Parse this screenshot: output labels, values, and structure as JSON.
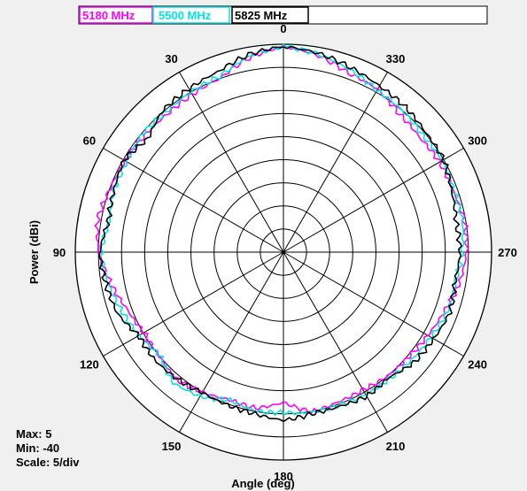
{
  "chart_data": {
    "type": "polar-line",
    "xlabel": "Angle (deg)",
    "ylabel": "Power (dBi)",
    "angle_tick_labels": [
      "0",
      "30",
      "60",
      "90",
      "120",
      "150",
      "180",
      "210",
      "240",
      "270",
      "300",
      "330"
    ],
    "radial_range": [
      -40,
      5
    ],
    "radial_scale_per_div": 5,
    "angular_direction": "counter-clockwise, 0 at top",
    "grid": true,
    "legend_position": "top",
    "series": [
      {
        "name": "5180 MHz",
        "color": "#ff00ff",
        "angles": [
          0,
          10,
          20,
          30,
          40,
          50,
          60,
          70,
          80,
          90,
          100,
          110,
          120,
          130,
          140,
          150,
          160,
          170,
          180,
          190,
          200,
          210,
          220,
          230,
          240,
          250,
          260,
          270,
          280,
          290,
          300,
          310,
          320,
          330,
          340,
          350
        ],
        "values": [
          4.5,
          2.7,
          0.0,
          -0.6,
          -1.0,
          -0.8,
          -0.5,
          -0.1,
          0.8,
          0.0,
          -2.0,
          -4.0,
          -5.2,
          -5.0,
          -4.0,
          -5.0,
          -6.0,
          -5.7,
          -7.5,
          -4.9,
          -5.5,
          -5.6,
          -5.0,
          -4.7,
          -4.0,
          -2.9,
          -1.4,
          -0.4,
          -0.3,
          -1.0,
          -1.0,
          -1.5,
          -1.0,
          0.7,
          1.2,
          3.2
        ]
      },
      {
        "name": "5500 MHz",
        "color": "#00e5e5",
        "angles": [
          0,
          10,
          20,
          30,
          40,
          50,
          60,
          70,
          80,
          90,
          100,
          110,
          120,
          130,
          140,
          150,
          160,
          170,
          180,
          190,
          200,
          210,
          220,
          230,
          240,
          250,
          260,
          270,
          280,
          290,
          300,
          310,
          320,
          330,
          340,
          350
        ],
        "values": [
          4.5,
          3.0,
          0.4,
          0.0,
          -0.5,
          -0.2,
          -0.9,
          -1.0,
          -1.8,
          -0.5,
          -1.5,
          -2.8,
          -4.0,
          -5.2,
          -3.0,
          -4.0,
          -6.0,
          -5.1,
          -5.3,
          -4.8,
          -4.8,
          -4.4,
          -4.3,
          -3.8,
          -3.2,
          -2.3,
          -2.3,
          -1.4,
          -0.7,
          -0.9,
          -0.3,
          -0.7,
          0.0,
          0.4,
          2.0,
          3.5
        ]
      },
      {
        "name": "5825 MHz",
        "color": "#000000",
        "angles": [
          0,
          10,
          20,
          30,
          40,
          50,
          60,
          70,
          80,
          90,
          100,
          110,
          120,
          130,
          140,
          150,
          160,
          170,
          180,
          190,
          200,
          210,
          220,
          230,
          240,
          250,
          260,
          270,
          280,
          290,
          300,
          310,
          320,
          330,
          340,
          350
        ],
        "values": [
          4.5,
          3.4,
          1.5,
          0.8,
          0.3,
          -1.8,
          -0.2,
          -1.0,
          -1.6,
          -0.3,
          -1.0,
          -1.7,
          -3.9,
          -3.7,
          -4.2,
          -4.9,
          -4.8,
          -4.5,
          -3.6,
          -4.5,
          -4.5,
          -4.0,
          -4.6,
          -3.0,
          -2.5,
          -1.7,
          -2.4,
          -1.8,
          -2.1,
          -1.3,
          0.0,
          0.2,
          1.0,
          1.5,
          2.5,
          3.7
        ]
      }
    ]
  },
  "info": {
    "max": "Max: 5",
    "min": "Min: -40",
    "scale": "Scale: 5/div"
  }
}
